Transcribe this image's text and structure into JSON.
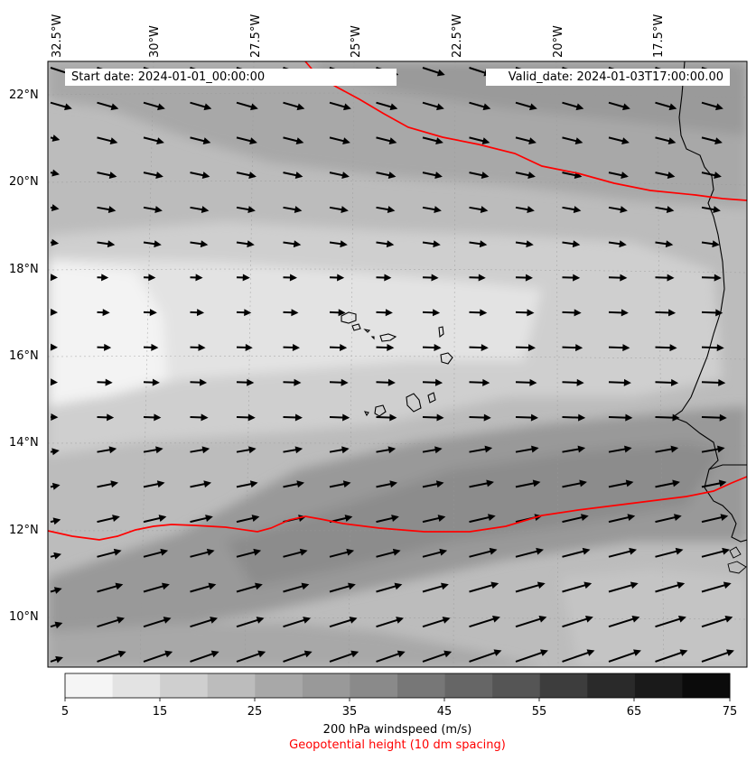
{
  "map": {
    "lon_ticks": [
      "32.5°W",
      "30°W",
      "27.5°W",
      "25°W",
      "22.5°W",
      "20°W",
      "17.5°W"
    ],
    "lat_ticks": [
      "22°N",
      "20°N",
      "18°N",
      "16°N",
      "14°N",
      "12°N",
      "10°N"
    ],
    "start_date": "Start date: 2024-01-01_00:00:00",
    "valid_date": "Valid_date: 2024-01-03T17:00:00.00",
    "colors": {
      "contour": "#ff0000",
      "coast": "#000000",
      "arrows": "#000000"
    }
  },
  "colorbar": {
    "levels": [
      "5",
      "15",
      "25",
      "35",
      "45",
      "55",
      "65",
      "75"
    ],
    "shades": [
      "#f5f5f5",
      "#e3e3e3",
      "#cfcfcf",
      "#bcbcbc",
      "#a8a8a8",
      "#999999",
      "#8a8a8a",
      "#777777",
      "#666666",
      "#555555",
      "#3d3d3d",
      "#2a2a2a",
      "#1a1a1a",
      "#0b0b0b"
    ],
    "label": "200 hPa windspeed (m/s)",
    "sublabel": "Geopotential height (10 dm spacing)",
    "sublabel_color": "#ff0000"
  }
}
